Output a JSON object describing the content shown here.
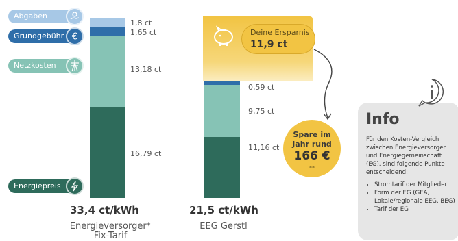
{
  "chart_data": {
    "type": "bar",
    "stacked": true,
    "categories": [
      "Energieversorger* Fix-Tarif",
      "EEG Gerstl"
    ],
    "series": [
      {
        "name": "Energiepreis",
        "values": [
          16.79,
          11.16
        ],
        "color": "#2e6b5b"
      },
      {
        "name": "Netzkosten",
        "values": [
          13.18,
          9.75
        ],
        "color": "#86c3b5"
      },
      {
        "name": "Grundgebühr",
        "values": [
          1.65,
          0.59
        ],
        "color": "#2f6ea9"
      },
      {
        "name": "Abgaben",
        "values": [
          1.8,
          0
        ],
        "color": "#a7c8e6"
      }
    ],
    "labels": {
      "energieversorger": [
        "16,79 ct",
        "13,18 ct",
        "1,65 ct",
        "1,8 ct"
      ],
      "eeg": [
        "11,16 ct",
        "9,75 ct",
        "0,59 ct"
      ]
    },
    "totals": [
      "33,4 ct/kWh",
      "21,5 ct/kWh"
    ],
    "captions": [
      "Energieversorger*",
      "Fix-Tarif",
      "EEG Gerstl"
    ]
  },
  "legend": {
    "abgaben": "Abgaben",
    "grundgebuehr": "Grundgebühr",
    "netzkosten": "Netzkosten",
    "energiepreis": "Energiepreis"
  },
  "savings": {
    "label": "Deine Ersparnis",
    "value": "11,9 ct"
  },
  "yearly": {
    "line1": "Spare im",
    "line2": "Jahr rund",
    "amount": "166 €",
    "note": "**"
  },
  "info": {
    "title": "Info",
    "text": "Für den Kosten-Vergleich zwischen Energieversorger und Energiegemeinschaft (EG), sind folgende Punkte entscheidend:",
    "items": [
      "Stromtarif der Mitglieder",
      "Form der EG (GEA, Lokale/regionale EEG, BEG)",
      "Tarif der EG"
    ]
  },
  "icons": [
    "coins-hand-icon",
    "euro-icon",
    "power-grid-icon",
    "lightning-icon",
    "piggy-bank-icon",
    "info-icon"
  ],
  "colors": {
    "energiepreis": "#2e6b5b",
    "netzkosten": "#86c3b5",
    "grundgebuehr": "#2f6ea9",
    "abgaben": "#a7c8e6",
    "savings_yellow": "#f2c443",
    "info_bg": "#e6e6e6"
  }
}
